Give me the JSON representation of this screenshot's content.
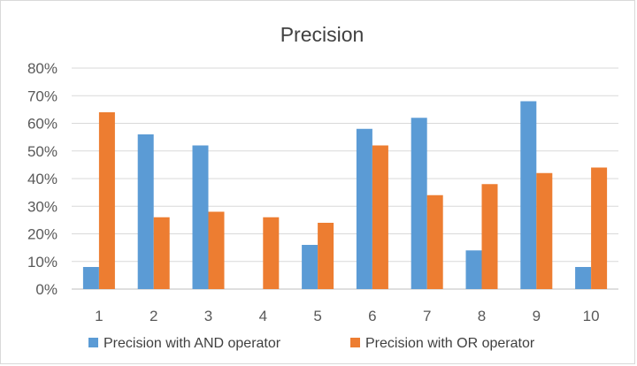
{
  "chart_data": {
    "type": "bar",
    "title": "Precision",
    "categories": [
      "1",
      "2",
      "3",
      "4",
      "5",
      "6",
      "7",
      "8",
      "9",
      "10"
    ],
    "series": [
      {
        "name": "Precision with AND operator",
        "color": "#5b9bd5",
        "values": [
          8,
          56,
          52,
          0,
          16,
          58,
          62,
          14,
          68,
          8
        ]
      },
      {
        "name": "Precision with OR operator",
        "color": "#ed7d31",
        "values": [
          64,
          26,
          28,
          26,
          24,
          52,
          34,
          38,
          42,
          44
        ]
      }
    ],
    "ylim": [
      0,
      80
    ],
    "yticks": [
      "0%",
      "10%",
      "20%",
      "30%",
      "40%",
      "50%",
      "60%",
      "70%",
      "80%"
    ],
    "grid": true,
    "legend": "bottom"
  }
}
